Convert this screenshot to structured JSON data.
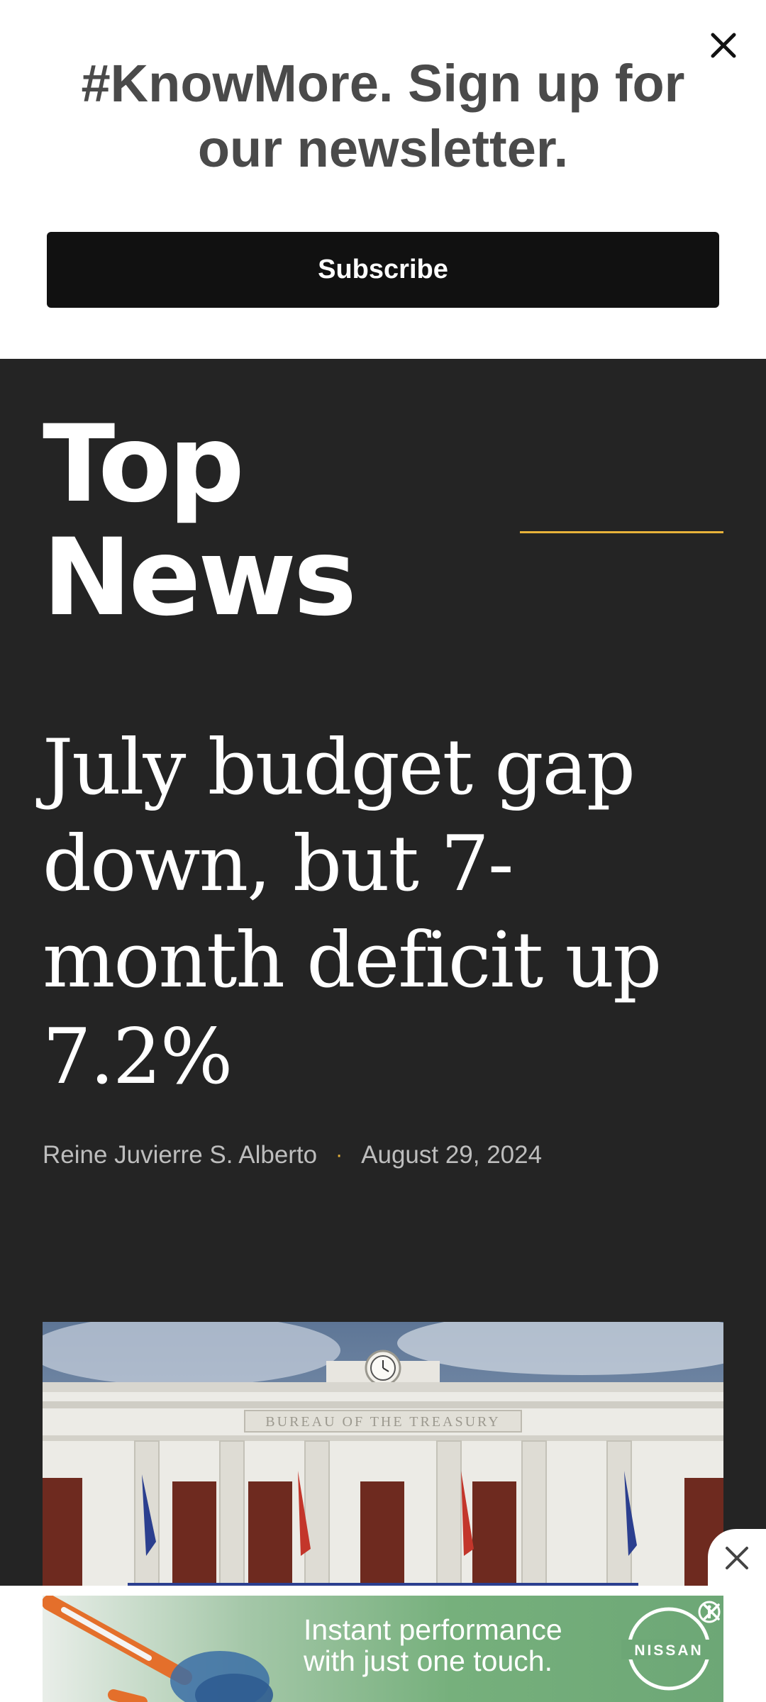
{
  "newsletter": {
    "title": "#KnowMore. Sign up for our newsletter.",
    "subscribe_label": "Subscribe"
  },
  "section": {
    "title_line1": "Top",
    "title_line2": "News"
  },
  "article": {
    "headline": "July budget gap down, but 7-month deficit up 7.2%",
    "author": "Reine Juvierre S. Alberto",
    "separator": "·",
    "date": "August 29, 2024"
  },
  "hero": {
    "building_sign": "BUREAU OF THE TREASURY"
  },
  "ad": {
    "line1": "Instant performance",
    "line2": "with just one touch.",
    "brand": "NISSAN"
  },
  "colors": {
    "accent": "#e8b23a",
    "background": "#242424",
    "subscribe_bg": "#111111"
  },
  "icons": {
    "newsletter_close": "close-icon",
    "ad_close": "close-icon",
    "ad_info": "info-icon"
  }
}
